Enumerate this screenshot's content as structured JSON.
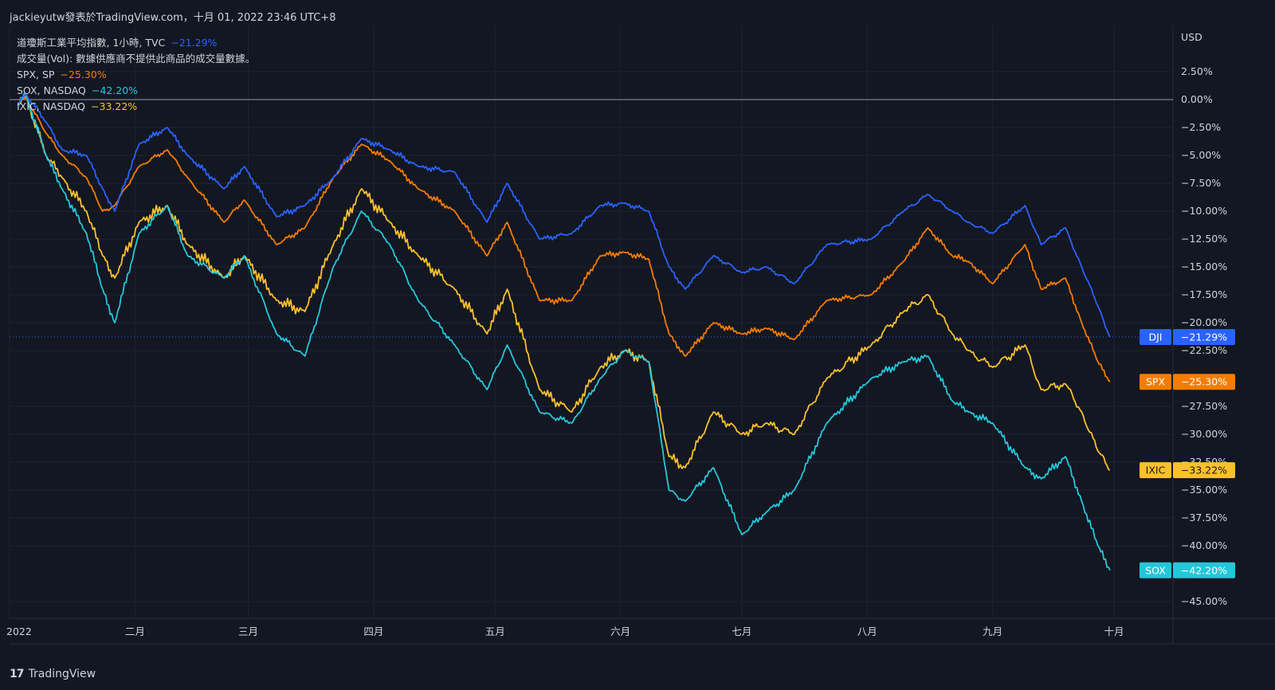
{
  "header": {
    "publish_line": "jackieyutw發表於TradingView.com，十月 01, 2022 23:46 UTC+8"
  },
  "legend": [
    {
      "name": "道瓊斯工業平均指數, 1小時, TVC",
      "value": "−21.29%",
      "color": "#2962ff"
    },
    {
      "name": "成交量(Vol): 數據供應商不提供此商品的成交量數據。",
      "value": "",
      "color": "#d1d4dc"
    },
    {
      "name": "SPX, SP",
      "value": "−25.30%",
      "color": "#f57c00"
    },
    {
      "name": "SOX, NASDAQ",
      "value": "−42.20%",
      "color": "#26c6da"
    },
    {
      "name": "IXIC, NASDAQ",
      "value": "−33.22%",
      "color": "#fbc02d"
    }
  ],
  "brand": {
    "logo": "17",
    "text": "TradingView"
  },
  "chart_data": {
    "type": "line",
    "currency_label": "USD",
    "y_unit": "percent change",
    "ylim": [
      -47,
      5
    ],
    "y_ticks": [
      2.5,
      0,
      -2.5,
      -5,
      -7.5,
      -10,
      -12.5,
      -15,
      -17.5,
      -20,
      -22.5,
      -27.5,
      -30,
      -32.5,
      -35,
      -37.5,
      -40,
      -45
    ],
    "y_tick_labels": [
      "2.50%",
      "0.00%",
      "−2.50%",
      "−5.00%",
      "−7.50%",
      "−10.00%",
      "−12.50%",
      "−15.00%",
      "−17.50%",
      "−20.00%",
      "−22.50%",
      "−27.50%",
      "−30.00%",
      "−32.50%",
      "−35.00%",
      "−37.50%",
      "−40.00%",
      "−45.00%"
    ],
    "x_ticks": [
      {
        "date": "2022-01-01",
        "label": "2022"
      },
      {
        "date": "2022-02-01",
        "label": "二月"
      },
      {
        "date": "2022-03-01",
        "label": "三月"
      },
      {
        "date": "2022-04-01",
        "label": "四月"
      },
      {
        "date": "2022-05-01",
        "label": "五月"
      },
      {
        "date": "2022-06-01",
        "label": "六月"
      },
      {
        "date": "2022-07-01",
        "label": "七月"
      },
      {
        "date": "2022-08-01",
        "label": "八月"
      },
      {
        "date": "2022-09-01",
        "label": "九月"
      },
      {
        "date": "2022-10-01",
        "label": "十月"
      }
    ],
    "xlim": [
      "2022-01-01",
      "2022-10-08"
    ],
    "grid": true,
    "series": [
      {
        "name": "DJI",
        "color": "#2962ff",
        "last": "−21.29%",
        "x": [
          "2022-01-03",
          "2022-01-05",
          "2022-01-10",
          "2022-01-14",
          "2022-01-20",
          "2022-01-24",
          "2022-01-27",
          "2022-02-02",
          "2022-02-09",
          "2022-02-14",
          "2022-02-23",
          "2022-02-28",
          "2022-03-08",
          "2022-03-15",
          "2022-03-22",
          "2022-03-29",
          "2022-04-05",
          "2022-04-12",
          "2022-04-21",
          "2022-04-29",
          "2022-05-04",
          "2022-05-12",
          "2022-05-20",
          "2022-05-27",
          "2022-06-02",
          "2022-06-08",
          "2022-06-13",
          "2022-06-17",
          "2022-06-24",
          "2022-07-01",
          "2022-07-07",
          "2022-07-14",
          "2022-07-22",
          "2022-08-02",
          "2022-08-10",
          "2022-08-16",
          "2022-08-22",
          "2022-08-26",
          "2022-09-01",
          "2022-09-09",
          "2022-09-13",
          "2022-09-19",
          "2022-09-23",
          "2022-09-27",
          "2022-09-30"
        ],
        "y": [
          -0.5,
          0.5,
          -2,
          -4.5,
          -5,
          -8,
          -10,
          -4,
          -2.5,
          -5,
          -8,
          -6,
          -10.5,
          -9.5,
          -7,
          -3.5,
          -4.5,
          -6,
          -6.5,
          -11,
          -7.5,
          -12.5,
          -12,
          -9.5,
          -9.3,
          -10,
          -15,
          -17,
          -14,
          -15.5,
          -15,
          -16.5,
          -13,
          -12.5,
          -10,
          -8.5,
          -10,
          -11,
          -12,
          -9.5,
          -13,
          -11.5,
          -15,
          -18.5,
          -21.29
        ]
      },
      {
        "name": "SPX",
        "color": "#f57c00",
        "last": "−25.30%",
        "x": [
          "2022-01-03",
          "2022-01-05",
          "2022-01-10",
          "2022-01-14",
          "2022-01-20",
          "2022-01-24",
          "2022-01-27",
          "2022-02-02",
          "2022-02-09",
          "2022-02-14",
          "2022-02-23",
          "2022-02-28",
          "2022-03-08",
          "2022-03-15",
          "2022-03-22",
          "2022-03-29",
          "2022-04-05",
          "2022-04-12",
          "2022-04-21",
          "2022-04-29",
          "2022-05-04",
          "2022-05-12",
          "2022-05-20",
          "2022-05-27",
          "2022-06-02",
          "2022-06-08",
          "2022-06-13",
          "2022-06-17",
          "2022-06-24",
          "2022-07-01",
          "2022-07-07",
          "2022-07-14",
          "2022-07-22",
          "2022-08-02",
          "2022-08-10",
          "2022-08-16",
          "2022-08-22",
          "2022-08-26",
          "2022-09-01",
          "2022-09-09",
          "2022-09-13",
          "2022-09-19",
          "2022-09-23",
          "2022-09-27",
          "2022-09-30"
        ],
        "y": [
          -0.5,
          0.2,
          -3,
          -5,
          -7,
          -10,
          -9.5,
          -6,
          -4.5,
          -7,
          -11,
          -9,
          -13,
          -11.5,
          -7,
          -4,
          -5.5,
          -8,
          -10,
          -14,
          -11,
          -18,
          -18,
          -14,
          -13.7,
          -14.3,
          -21,
          -23,
          -20,
          -21,
          -20.5,
          -21.5,
          -18,
          -17.5,
          -14.5,
          -11.5,
          -14,
          -14.5,
          -16.5,
          -13,
          -17,
          -16,
          -20,
          -23.5,
          -25.3
        ]
      },
      {
        "name": "SOX",
        "color": "#26c6da",
        "last": "−42.20%",
        "x": [
          "2022-01-03",
          "2022-01-05",
          "2022-01-10",
          "2022-01-14",
          "2022-01-20",
          "2022-01-24",
          "2022-01-27",
          "2022-02-02",
          "2022-02-09",
          "2022-02-14",
          "2022-02-23",
          "2022-02-28",
          "2022-03-08",
          "2022-03-15",
          "2022-03-22",
          "2022-03-29",
          "2022-04-05",
          "2022-04-12",
          "2022-04-21",
          "2022-04-29",
          "2022-05-04",
          "2022-05-12",
          "2022-05-20",
          "2022-05-27",
          "2022-06-02",
          "2022-06-08",
          "2022-06-13",
          "2022-06-17",
          "2022-06-24",
          "2022-07-01",
          "2022-07-07",
          "2022-07-14",
          "2022-07-22",
          "2022-08-02",
          "2022-08-10",
          "2022-08-16",
          "2022-08-22",
          "2022-08-26",
          "2022-09-01",
          "2022-09-09",
          "2022-09-13",
          "2022-09-19",
          "2022-09-23",
          "2022-09-27",
          "2022-09-30"
        ],
        "y": [
          -0.5,
          0.5,
          -5,
          -8,
          -12,
          -17,
          -20,
          -12,
          -9.5,
          -14,
          -16,
          -14,
          -21,
          -23,
          -15,
          -10,
          -13,
          -18,
          -22,
          -26,
          -22,
          -28,
          -29,
          -25,
          -22.5,
          -23.5,
          -35,
          -36,
          -33,
          -39,
          -37,
          -35,
          -29,
          -25,
          -23.5,
          -23,
          -27,
          -28,
          -29,
          -33,
          -34,
          -32,
          -36,
          -40,
          -42.2
        ]
      },
      {
        "name": "IXIC",
        "color": "#fbc02d",
        "last": "−33.22%",
        "x": [
          "2022-01-03",
          "2022-01-05",
          "2022-01-10",
          "2022-01-14",
          "2022-01-20",
          "2022-01-24",
          "2022-01-27",
          "2022-02-02",
          "2022-02-09",
          "2022-02-14",
          "2022-02-23",
          "2022-02-28",
          "2022-03-08",
          "2022-03-15",
          "2022-03-22",
          "2022-03-29",
          "2022-04-05",
          "2022-04-12",
          "2022-04-21",
          "2022-04-29",
          "2022-05-04",
          "2022-05-12",
          "2022-05-20",
          "2022-05-27",
          "2022-06-02",
          "2022-06-08",
          "2022-06-13",
          "2022-06-17",
          "2022-06-24",
          "2022-07-01",
          "2022-07-07",
          "2022-07-14",
          "2022-07-22",
          "2022-08-02",
          "2022-08-10",
          "2022-08-16",
          "2022-08-22",
          "2022-08-26",
          "2022-09-01",
          "2022-09-09",
          "2022-09-13",
          "2022-09-19",
          "2022-09-23",
          "2022-09-27",
          "2022-09-30"
        ],
        "y": [
          -0.5,
          0.3,
          -5,
          -7,
          -10,
          -14,
          -16,
          -11,
          -9.5,
          -13,
          -16,
          -14,
          -18,
          -19,
          -13,
          -8,
          -11,
          -14,
          -17,
          -21,
          -17,
          -26,
          -28,
          -24,
          -22.5,
          -23.5,
          -32,
          -33,
          -28,
          -30,
          -29,
          -30,
          -25,
          -22,
          -19,
          -17.5,
          -21,
          -22.5,
          -24,
          -22,
          -26,
          -25.5,
          -28,
          -31.5,
          -33.22
        ]
      }
    ]
  }
}
